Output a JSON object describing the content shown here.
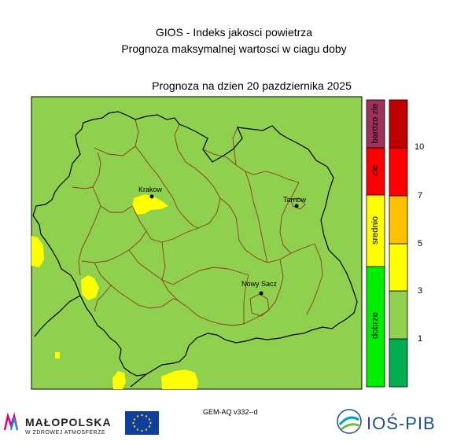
{
  "header": {
    "title_line1": "GIOS - Indeks jakosci powietrza",
    "title_line2": "Prognoza maksymalnej wartosci w ciagu doby",
    "forecast_label": "Prognoza na dzien  20 pazdziernika 2025"
  },
  "cities": [
    {
      "name": "Krakow"
    },
    {
      "name": "Tarnow"
    },
    {
      "name": "Nowy Sacz"
    }
  ],
  "category_scale": [
    {
      "label": "dobrze",
      "color": "#00ee00"
    },
    {
      "label": "srednio",
      "color": "#ffff00"
    },
    {
      "label": "zle",
      "color": "#ff0000"
    },
    {
      "label": "bardzo zle",
      "color": "#a0305c"
    }
  ],
  "value_scale": {
    "ticks": [
      "1",
      "3",
      "5",
      "7",
      "10"
    ],
    "colors": [
      "#00b050",
      "#92d050",
      "#ffff00",
      "#ffc000",
      "#ff0000",
      "#c00000"
    ]
  },
  "map_colors": {
    "background": "#8fd04e",
    "moderate": "#ffff00"
  },
  "footer": {
    "model": "GEM-AQ v332--d",
    "logo_malopolska": "MAŁOPOLSKA",
    "logo_malopolska_sub": "W ZDROWEJ ATMOSFERZE",
    "logo_ios": "IOŚ-PIB"
  }
}
